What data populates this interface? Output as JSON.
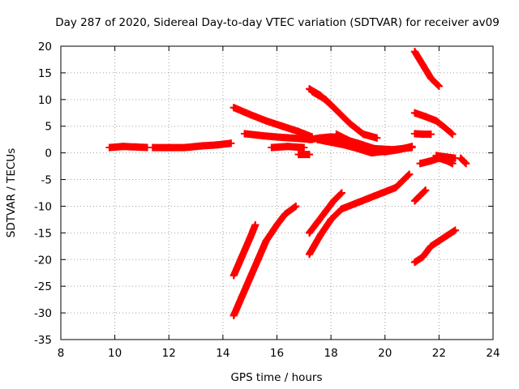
{
  "chart_data": {
    "type": "scatter",
    "title": "Day 287 of 2020, Sidereal Day-to-day VTEC variation (SDTVAR) for receiver av09",
    "xlabel": "GPS time / hours",
    "ylabel": "SDTVAR / TECUs",
    "xlim": [
      8,
      24
    ],
    "ylim": [
      -35,
      20
    ],
    "xticks": [
      8,
      10,
      12,
      14,
      16,
      18,
      20,
      22,
      24
    ],
    "yticks": [
      -35,
      -30,
      -25,
      -20,
      -15,
      -10,
      -5,
      0,
      5,
      10,
      15,
      20
    ],
    "grid": true,
    "marker": "plus",
    "color": "#ff0000",
    "series": [
      {
        "x": [
          9.8,
          10.3,
          10.8,
          11.2
        ],
        "y": [
          1.0,
          1.2,
          1.1,
          1.0
        ]
      },
      {
        "x": [
          11.4,
          12.0,
          12.6,
          13.2,
          13.8,
          14.3
        ],
        "y": [
          1.0,
          1.0,
          1.0,
          1.3,
          1.5,
          1.8
        ]
      },
      {
        "x": [
          14.4,
          15.0,
          15.6,
          16.2,
          16.8,
          17.3
        ],
        "y": [
          8.5,
          7.2,
          6.0,
          5.0,
          4.0,
          3.0
        ]
      },
      {
        "x": [
          14.8,
          15.5,
          16.2,
          16.8,
          17.3
        ],
        "y": [
          3.6,
          3.2,
          2.9,
          2.7,
          2.5
        ]
      },
      {
        "x": [
          15.8,
          16.4,
          17.0
        ],
        "y": [
          1.0,
          1.2,
          1.0
        ]
      },
      {
        "x": [
          16.8,
          17.2
        ],
        "y": [
          -0.3,
          -0.3
        ]
      },
      {
        "x": [
          17.2,
          17.6,
          18.0,
          18.5,
          19.0,
          19.6,
          20.3,
          21.0
        ],
        "y": [
          2.5,
          2.8,
          3.0,
          2.5,
          1.8,
          0.8,
          0.6,
          1.0
        ]
      },
      {
        "x": [
          17.5,
          18.0,
          18.5,
          19.0,
          19.5,
          20.0
        ],
        "y": [
          2.5,
          2.0,
          1.5,
          0.8,
          0.0,
          0.3
        ]
      },
      {
        "x": [
          17.2,
          17.6,
          18.0
        ],
        "y": [
          12.0,
          10.8,
          9.0
        ]
      },
      {
        "x": [
          17.3,
          17.8,
          18.2,
          18.7,
          19.2,
          19.7
        ],
        "y": [
          11.5,
          10.0,
          8.0,
          5.5,
          3.5,
          2.8
        ]
      },
      {
        "x": [
          18.2,
          18.6,
          19.0,
          19.5,
          20.0,
          20.5,
          21.0
        ],
        "y": [
          3.5,
          2.5,
          1.5,
          0.5,
          0.2,
          0.6,
          1.2
        ]
      },
      {
        "x": [
          17.2,
          17.6,
          18.0,
          18.4,
          18.9,
          19.4,
          19.9,
          20.4,
          20.9
        ],
        "y": [
          -19.0,
          -15.5,
          -12.5,
          -10.5,
          -9.5,
          -8.5,
          -7.5,
          -6.5,
          -4.0
        ]
      },
      {
        "x": [
          17.2,
          17.5,
          17.8,
          18.1,
          18.4
        ],
        "y": [
          -15.0,
          -13.0,
          -11.0,
          -9.0,
          -7.5
        ]
      },
      {
        "x": [
          14.4,
          14.7,
          15.0,
          15.3,
          15.6,
          16.0,
          16.3,
          16.7
        ],
        "y": [
          -30.5,
          -27.0,
          -23.5,
          -20.0,
          -16.5,
          -13.5,
          -11.5,
          -10.0
        ]
      },
      {
        "x": [
          14.4,
          14.7,
          15.0,
          15.2
        ],
        "y": [
          -23.0,
          -19.5,
          -16.0,
          -13.5
        ]
      },
      {
        "x": [
          21.1,
          21.4,
          21.7,
          22.0
        ],
        "y": [
          19.0,
          16.5,
          14.0,
          12.5
        ]
      },
      {
        "x": [
          21.1,
          21.5,
          21.9,
          22.2,
          22.5
        ],
        "y": [
          7.5,
          6.8,
          6.0,
          4.8,
          3.5
        ]
      },
      {
        "x": [
          21.1,
          21.4,
          21.7
        ],
        "y": [
          3.6,
          3.5,
          3.5
        ]
      },
      {
        "x": [
          21.3,
          21.7,
          22.0,
          22.3,
          22.5
        ],
        "y": [
          -2.0,
          -1.5,
          -1.0,
          -1.5,
          -2.0
        ]
      },
      {
        "x": [
          21.9,
          22.3,
          22.6
        ],
        "y": [
          -0.5,
          -0.8,
          -1.0
        ]
      },
      {
        "x": [
          22.8,
          23.0
        ],
        "y": [
          -1.0,
          -2.0
        ]
      },
      {
        "x": [
          21.1,
          21.3,
          21.5
        ],
        "y": [
          -9.0,
          -8.0,
          -7.0
        ]
      },
      {
        "x": [
          21.1,
          21.4,
          21.7,
          22.0,
          22.3,
          22.6
        ],
        "y": [
          -20.5,
          -19.5,
          -17.5,
          -16.5,
          -15.5,
          -14.5
        ]
      }
    ]
  }
}
